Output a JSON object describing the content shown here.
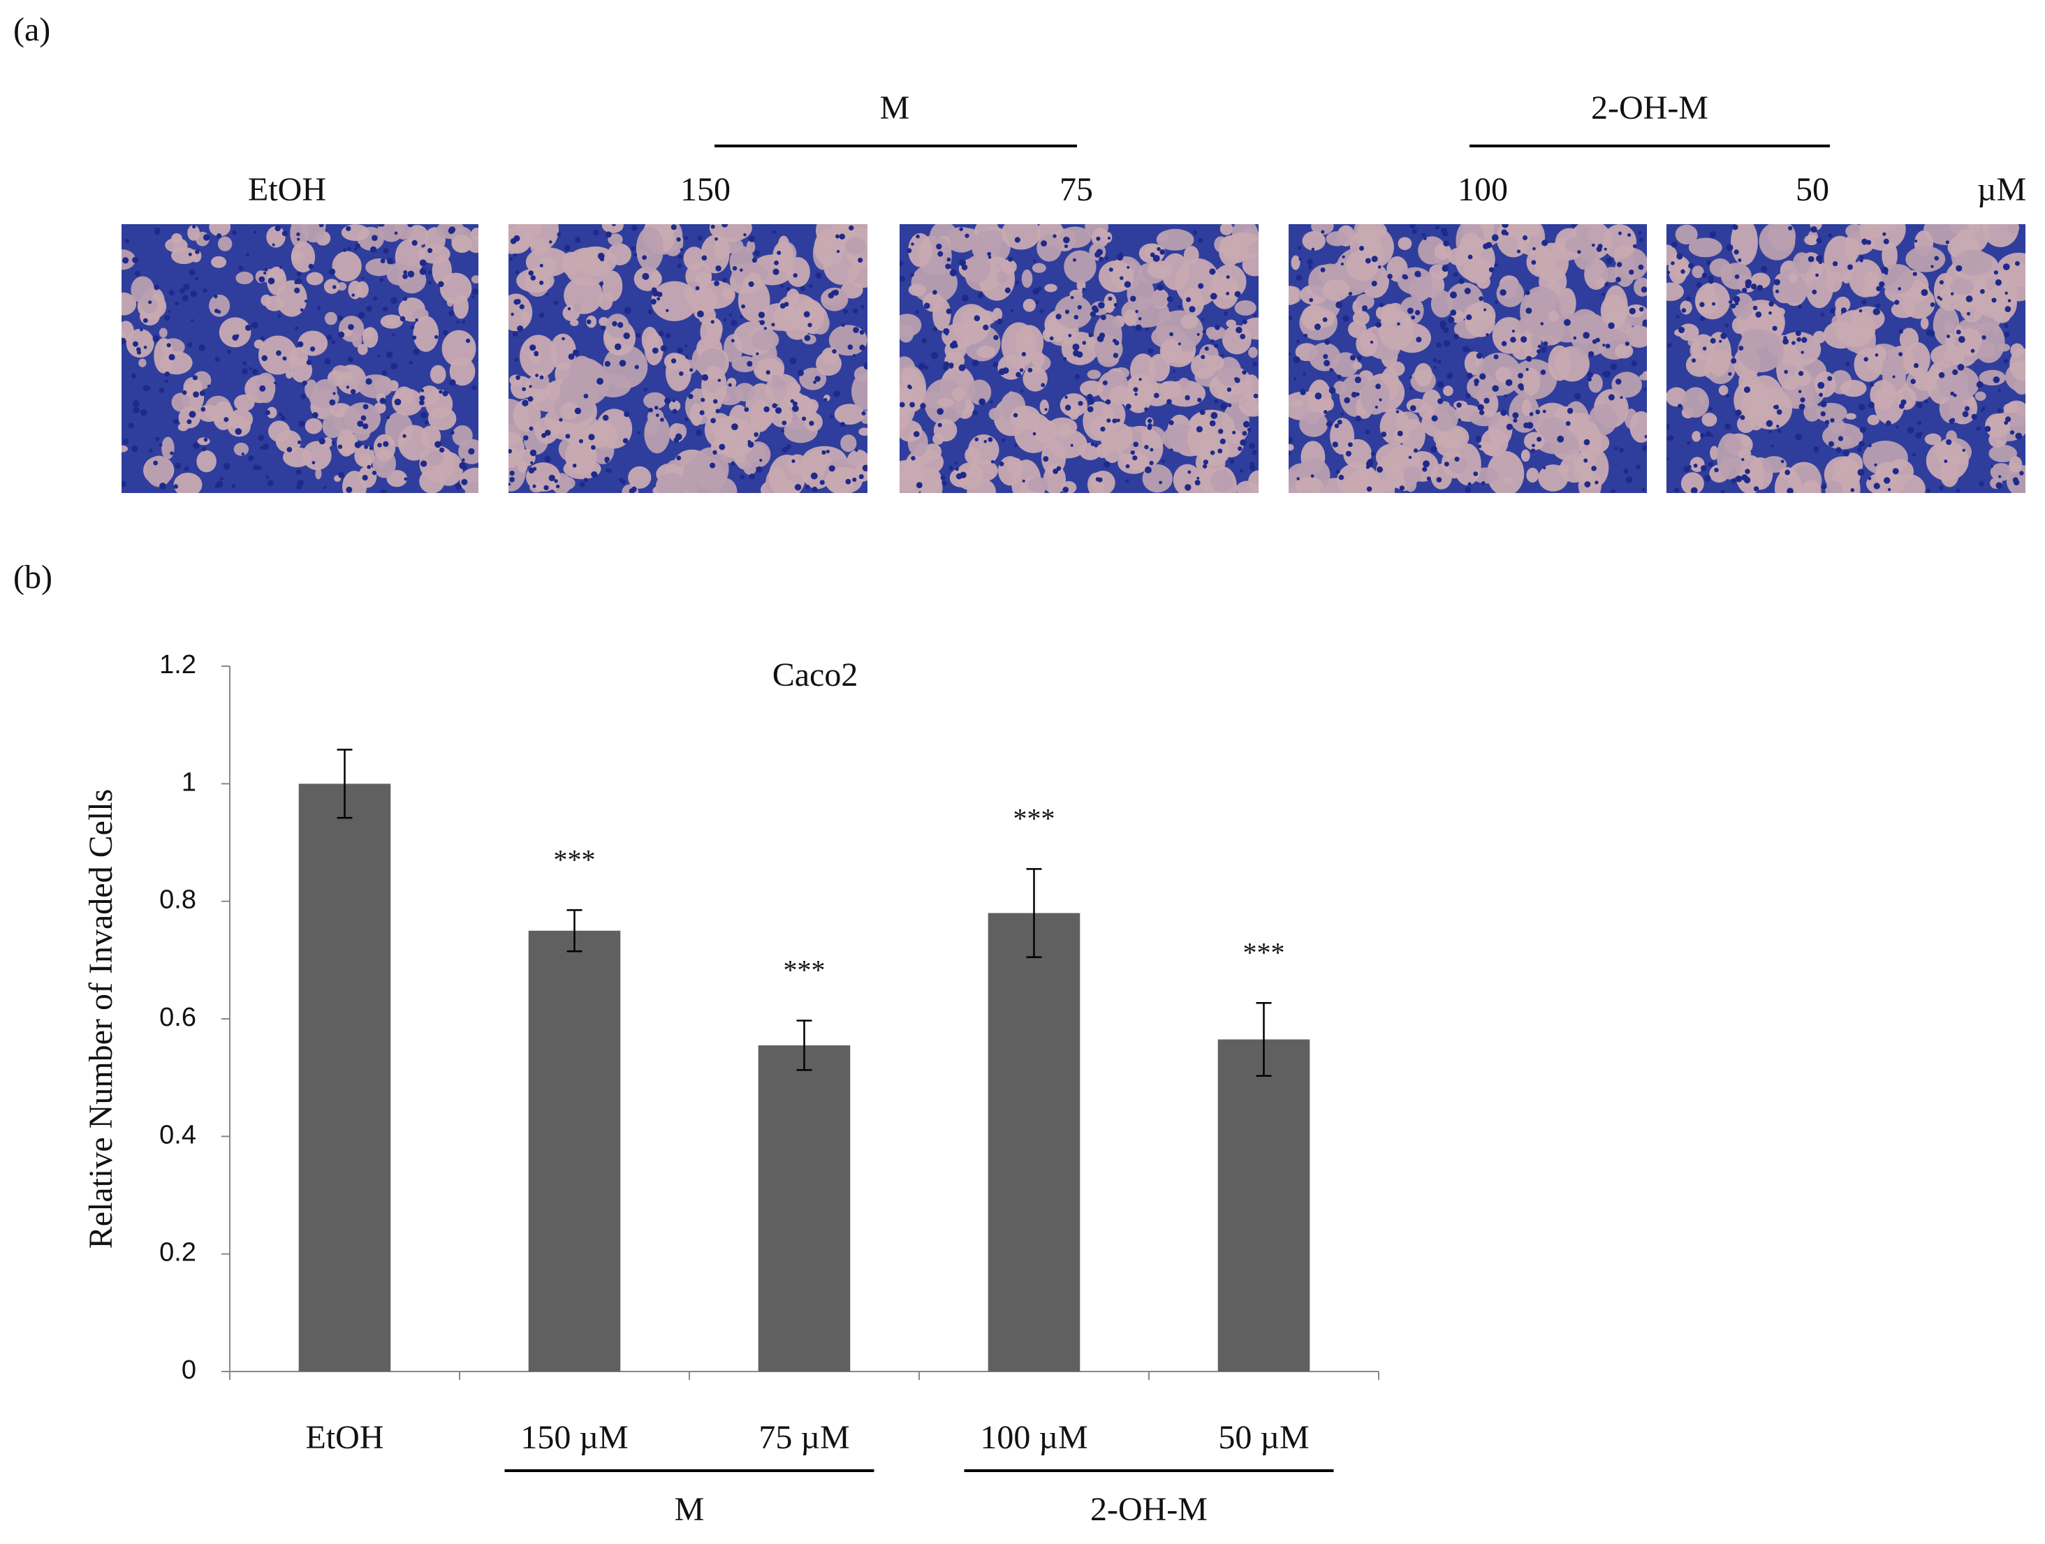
{
  "panel_a": {
    "label": "(a)",
    "groups": [
      {
        "label": "M"
      },
      {
        "label": "2-OH-M"
      }
    ],
    "images": [
      {
        "label": "EtOH"
      },
      {
        "label": "150"
      },
      {
        "label": "75"
      },
      {
        "label": "100"
      },
      {
        "label": "50"
      }
    ],
    "unit": "µM"
  },
  "chart_data": {
    "type": "bar",
    "panel_label": "(b)",
    "title": "Caco2",
    "y_label": "Relative Number of Invaded Cells",
    "categories": [
      "EtOH",
      "150 µM",
      "75 µM",
      "100 µM",
      "50 µM"
    ],
    "values": [
      1.0,
      0.75,
      0.555,
      0.78,
      0.565
    ],
    "errors": [
      0.058,
      0.035,
      0.042,
      0.075,
      0.062
    ],
    "significance": [
      null,
      "***",
      "***",
      "***",
      "***"
    ],
    "groups": [
      {
        "label": "M",
        "members": [
          "150 µM",
          "75 µM"
        ]
      },
      {
        "label": "2-OH-M",
        "members": [
          "100 µM",
          "50 µM"
        ]
      }
    ],
    "color": "#606060",
    "ylim": [
      0,
      1.2
    ],
    "yticks": [
      0,
      0.2,
      0.4,
      0.6,
      0.8,
      1,
      1.2
    ],
    "grid": false
  }
}
